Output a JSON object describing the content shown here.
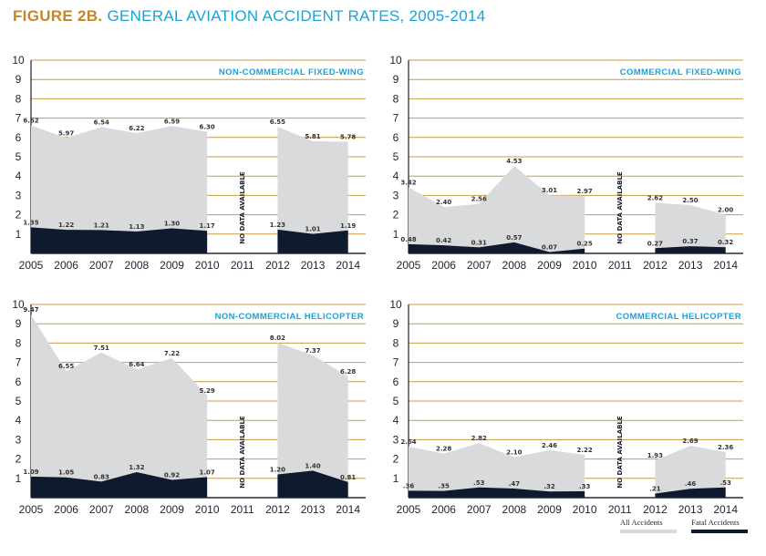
{
  "title": {
    "lead": "FIGURE 2B.",
    "rest": "GENERAL AVIATION ACCIDENT RATES, 2005-2014"
  },
  "legend": {
    "all": "All Accidents",
    "fatal": "Fatal Accidents"
  },
  "colors": {
    "all": "#d9dadb",
    "fatal": "#0e1a2e",
    "grid": "#c89b42",
    "accent": "#1aa3d6"
  },
  "chart_data": [
    {
      "type": "area",
      "title": "NON-COMMERCIAL FIXED-WING",
      "ylim": [
        0,
        10
      ],
      "yticks": [
        "1",
        "2",
        "3",
        "4",
        "5",
        "6",
        "7",
        "8",
        "9",
        "10"
      ],
      "categories": [
        "2005",
        "2006",
        "2007",
        "2008",
        "2009",
        "2010",
        "2011",
        "2012",
        "2013",
        "2014"
      ],
      "no_data_label": "NO DATA AVAILABLE",
      "series": [
        {
          "name": "All Accidents",
          "values": [
            6.62,
            5.97,
            6.54,
            6.22,
            6.59,
            6.3,
            null,
            6.55,
            5.81,
            5.78
          ],
          "labels": [
            "6.62",
            "5.97",
            "6.54",
            "6.22",
            "6.59",
            "6.30",
            "",
            "6.55",
            "5.81",
            "5.78"
          ]
        },
        {
          "name": "Fatal Accidents",
          "values": [
            1.35,
            1.22,
            1.21,
            1.13,
            1.3,
            1.17,
            null,
            1.23,
            1.01,
            1.19
          ],
          "labels": [
            "1.35",
            "1.22",
            "1.21",
            "1.13",
            "1.30",
            "1.17",
            "",
            "1.23",
            "1.01",
            "1.19"
          ]
        }
      ]
    },
    {
      "type": "area",
      "title": "COMMERCIAL FIXED-WING",
      "ylim": [
        0,
        10
      ],
      "yticks": [
        "1",
        "2",
        "3",
        "4",
        "5",
        "6",
        "7",
        "8",
        "9",
        "10"
      ],
      "categories": [
        "2005",
        "2006",
        "2007",
        "2008",
        "2009",
        "2010",
        "2011",
        "2012",
        "2013",
        "2014"
      ],
      "no_data_label": "NO DATA AVAILABLE",
      "series": [
        {
          "name": "All Accidents",
          "values": [
            3.42,
            2.4,
            2.56,
            4.53,
            3.01,
            2.97,
            null,
            2.62,
            2.5,
            2.0
          ],
          "labels": [
            "3.42",
            "2.40",
            "2.56",
            "4.53",
            "3.01",
            "2.97",
            "",
            "2.62",
            "2.50",
            "2.00"
          ]
        },
        {
          "name": "Fatal Accidents",
          "values": [
            0.48,
            0.42,
            0.31,
            0.57,
            0.07,
            0.25,
            null,
            0.27,
            0.37,
            0.32
          ],
          "labels": [
            "0.48",
            "0.42",
            "0.31",
            "0.57",
            "0.07",
            "0.25",
            "",
            "0.27",
            "0.37",
            "0.32"
          ]
        }
      ]
    },
    {
      "type": "area",
      "title": "NON-COMMERCIAL HELICOPTER",
      "ylim": [
        0,
        10
      ],
      "yticks": [
        "1",
        "2",
        "3",
        "4",
        "5",
        "6",
        "7",
        "8",
        "9",
        "10"
      ],
      "categories": [
        "2005",
        "2006",
        "2007",
        "2008",
        "2009",
        "2010",
        "2011",
        "2012",
        "2013",
        "2014"
      ],
      "no_data_label": "NO DATA AVAILABLE",
      "series": [
        {
          "name": "All Accidents",
          "values": [
            9.47,
            6.55,
            7.51,
            6.64,
            7.22,
            5.29,
            null,
            8.02,
            7.37,
            6.28
          ],
          "labels": [
            "9.47",
            "6.55",
            "7.51",
            "6.64",
            "7.22",
            "5.29",
            "",
            "8.02",
            "7.37",
            "6.28"
          ]
        },
        {
          "name": "Fatal Accidents",
          "values": [
            1.09,
            1.05,
            0.83,
            1.32,
            0.92,
            1.07,
            null,
            1.2,
            1.4,
            0.81
          ],
          "labels": [
            "1.09",
            "1.05",
            "0.83",
            "1.32",
            "0.92",
            "1.07",
            "",
            "1.20",
            "1.40",
            "0.81"
          ]
        }
      ]
    },
    {
      "type": "area",
      "title": "COMMERCIAL HELICOPTER",
      "ylim": [
        0,
        10
      ],
      "yticks": [
        "1",
        "2",
        "3",
        "4",
        "5",
        "6",
        "7",
        "8",
        "9",
        "10"
      ],
      "categories": [
        "2005",
        "2006",
        "2007",
        "2008",
        "2009",
        "2010",
        "2011",
        "2012",
        "2013",
        "2014"
      ],
      "no_data_label": "NO DATA AVAILABLE",
      "series": [
        {
          "name": "All Accidents",
          "values": [
            2.64,
            2.28,
            2.82,
            2.1,
            2.46,
            2.22,
            null,
            1.93,
            2.69,
            2.36
          ],
          "labels": [
            "2.64",
            "2.28",
            "2.82",
            "2.10",
            "2.46",
            "2.22",
            "",
            "1.93",
            "2.69",
            "2.36"
          ]
        },
        {
          "name": "Fatal Accidents",
          "values": [
            0.36,
            0.35,
            0.53,
            0.47,
            0.32,
            0.33,
            null,
            0.21,
            0.46,
            0.53
          ],
          "labels": [
            ".36",
            ".35",
            ".53",
            ".47",
            ".32",
            ".33",
            "",
            ".21",
            ".46",
            ".53"
          ]
        }
      ]
    }
  ]
}
